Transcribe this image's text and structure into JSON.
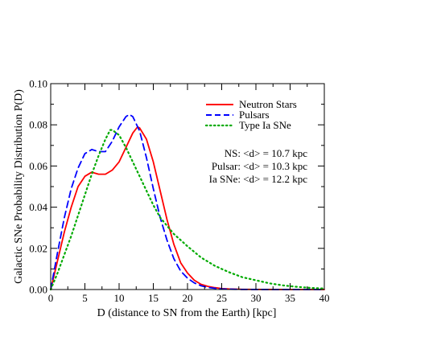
{
  "chart_data": {
    "type": "line",
    "xlabel": "D (distance to SN from the Earth)  [kpc]",
    "ylabel": "Galactic SNe Probability Distribution P(D)",
    "xlim": [
      0,
      40
    ],
    "ylim": [
      0,
      0.1
    ],
    "x_ticks": [
      "0",
      "5",
      "10",
      "15",
      "20",
      "25",
      "30",
      "35",
      "40"
    ],
    "y_ticks": [
      "0.00",
      "0.02",
      "0.04",
      "0.06",
      "0.08",
      "0.10"
    ],
    "grid": false,
    "legend_position": "top-right",
    "series": [
      {
        "name": "Neutron Stars",
        "color": "#ff0000",
        "dash": "solid",
        "x": [
          0,
          1,
          2,
          3,
          4,
          5,
          6,
          7,
          8,
          9,
          10,
          11,
          12,
          12.7,
          13,
          14,
          15,
          16,
          17,
          18,
          19,
          20,
          21,
          22,
          23,
          24,
          25,
          26,
          27,
          28,
          30,
          32,
          35,
          40
        ],
        "y": [
          0,
          0.014,
          0.028,
          0.04,
          0.05,
          0.055,
          0.057,
          0.056,
          0.056,
          0.058,
          0.062,
          0.069,
          0.076,
          0.079,
          0.0785,
          0.073,
          0.062,
          0.048,
          0.034,
          0.022,
          0.013,
          0.008,
          0.0045,
          0.0025,
          0.0015,
          0.0009,
          0.0005,
          0.0003,
          0.0002,
          0.0001,
          5e-05,
          2e-05,
          0,
          0
        ]
      },
      {
        "name": "Pulsars",
        "color": "#0000ff",
        "dash": "dashed",
        "x": [
          0,
          1,
          2,
          3,
          4,
          5,
          6,
          7,
          8,
          9,
          10,
          11,
          11.5,
          12,
          13,
          14,
          15,
          16,
          17,
          18,
          19,
          20,
          21,
          22,
          23,
          24,
          25,
          26,
          27,
          28,
          30,
          35,
          40
        ],
        "y": [
          0,
          0.018,
          0.035,
          0.049,
          0.059,
          0.066,
          0.068,
          0.067,
          0.067,
          0.072,
          0.079,
          0.084,
          0.085,
          0.084,
          0.077,
          0.064,
          0.049,
          0.035,
          0.024,
          0.015,
          0.009,
          0.0055,
          0.0032,
          0.0018,
          0.001,
          0.0006,
          0.0003,
          0.0002,
          0.0001,
          5e-05,
          2e-05,
          0,
          0
        ]
      },
      {
        "name": "Type Ia SNe",
        "color": "#00aa00",
        "dash": "dotted",
        "x": [
          0,
          1,
          2,
          3,
          4,
          5,
          6,
          7,
          8,
          8.7,
          9,
          10,
          11,
          12,
          13,
          14,
          15,
          16,
          17,
          18,
          19,
          20,
          22,
          24,
          26,
          28,
          30,
          32,
          34,
          36,
          38,
          40
        ],
        "y": [
          0,
          0.008,
          0.017,
          0.026,
          0.036,
          0.046,
          0.056,
          0.065,
          0.073,
          0.0775,
          0.0775,
          0.075,
          0.069,
          0.062,
          0.055,
          0.048,
          0.041,
          0.035,
          0.031,
          0.027,
          0.024,
          0.021,
          0.0155,
          0.0115,
          0.0085,
          0.006,
          0.0045,
          0.003,
          0.002,
          0.0013,
          0.0008,
          0.0005
        ]
      }
    ],
    "annotations": [
      "NS: <d>  = 10.7 kpc",
      "Pulsar: <d>  = 10.3 kpc",
      "Ia SNe: <d>  = 12.2 kpc"
    ]
  }
}
